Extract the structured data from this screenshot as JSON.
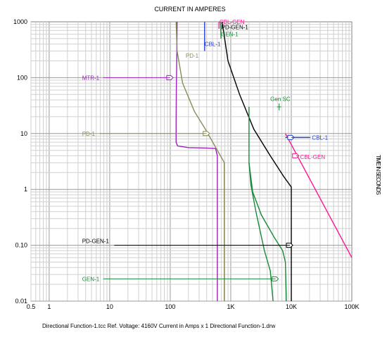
{
  "chart_data": {
    "type": "line",
    "title": "CURRENT IN AMPERES",
    "ylabel": "TIME IN SECONDS",
    "x_scale": "log",
    "y_scale": "log",
    "xlim": [
      0.5,
      100000
    ],
    "ylim": [
      0.01,
      1000
    ],
    "grid": true,
    "x_ticks": [
      {
        "value": 0.5,
        "label": "0.5"
      },
      {
        "value": 1,
        "label": "1"
      },
      {
        "value": 10,
        "label": "10"
      },
      {
        "value": 100,
        "label": "100"
      },
      {
        "value": 1000,
        "label": "1K"
      },
      {
        "value": 10000,
        "label": "10K"
      },
      {
        "value": 100000,
        "label": "100K"
      }
    ],
    "y_ticks": [
      {
        "value": 1000,
        "label": "1000"
      },
      {
        "value": 100,
        "label": "100"
      },
      {
        "value": 10,
        "label": "10"
      },
      {
        "value": 1,
        "label": "1"
      },
      {
        "value": 0.1,
        "label": "0.10"
      },
      {
        "value": 0.01,
        "label": "0.01"
      }
    ],
    "series": [
      {
        "name": "MTR-1",
        "color": "#a020c0",
        "lines": [
          [
            [
              130,
              1000
            ],
            [
              128,
              200
            ],
            [
              126,
              60
            ],
            [
              125,
              15
            ],
            [
              125,
              7
            ],
            [
              132,
              6
            ],
            [
              200,
              5.6
            ],
            [
              400,
              5.5
            ],
            [
              560,
              5.4
            ],
            [
              600,
              4
            ],
            [
              600,
              0.01
            ]
          ]
        ]
      },
      {
        "name": "PD-1",
        "color": "#8b8b5a",
        "lines": [
          [
            [
              125,
              1000
            ],
            [
              130,
              300
            ],
            [
              160,
              80
            ],
            [
              250,
              25
            ],
            [
              380,
              12
            ],
            [
              600,
              5
            ],
            [
              760,
              3.2
            ],
            [
              780,
              3
            ],
            [
              780,
              0.01
            ]
          ]
        ]
      },
      {
        "name": "CBL-1",
        "color": "#1f3fd4",
        "lines": [
          [
            [
              370,
              1000
            ],
            [
              370,
              300
            ]
          ],
          [
            [
              8000,
              8.5
            ],
            [
              20000,
              8.5
            ]
          ]
        ]
      },
      {
        "name": "CBL-GEN",
        "color": "#ff1493",
        "lines": [
          [
            [
              640,
              1000
            ],
            [
              640,
              750
            ]
          ],
          [
            [
              8000,
              10
            ],
            [
              100000,
              0.06
            ]
          ]
        ]
      },
      {
        "name": "PD-GEN-1",
        "color": "#000000",
        "lines": [
          [
            [
              720,
              1000
            ],
            [
              900,
              200
            ],
            [
              1400,
              50
            ],
            [
              2400,
              12
            ],
            [
              4500,
              4
            ],
            [
              7500,
              1.7
            ],
            [
              10000,
              1.1
            ],
            [
              10000,
              0.01
            ]
          ]
        ]
      },
      {
        "name": "GEN-1",
        "color": "#1a8a3a",
        "lines": [
          [
            [
              680,
              1000
            ],
            [
              690,
              500
            ]
          ],
          [
            [
              2000,
              30
            ],
            [
              2000,
              3
            ],
            [
              2150,
              1.2
            ],
            [
              2600,
              0.4
            ],
            [
              3600,
              0.08
            ],
            [
              4500,
              0.035
            ],
            [
              5000,
              0.01
            ]
          ],
          [
            [
              2000,
              3
            ],
            [
              2300,
              0.9
            ],
            [
              3200,
              0.35
            ],
            [
              5200,
              0.14
            ],
            [
              7200,
              0.08
            ],
            [
              8000,
              0.05
            ],
            [
              8300,
              0.01
            ]
          ]
        ]
      }
    ],
    "labels": [
      {
        "text": "MTR-1",
        "series": "MTR-1",
        "x": 3.5,
        "y": 100
      },
      {
        "text": "PD-1",
        "series": "PD-1",
        "x": 3.5,
        "y": 10
      },
      {
        "text": "PD-1",
        "series": "PD-1",
        "x": 180,
        "y": 250
      },
      {
        "text": "CBL-1",
        "series": "CBL-1",
        "x": 370,
        "y": 400
      },
      {
        "text": "CBL-1",
        "series": "CBL-1",
        "x": 22000,
        "y": 8.5
      },
      {
        "text": "CBL-GEN",
        "series": "CBL-GEN",
        "x": 650,
        "y": 1000
      },
      {
        "text": "CBL-GEN",
        "series": "CBL-GEN",
        "x": 14000,
        "y": 3.8
      },
      {
        "text": "PD-GEN-1",
        "series": "PD-GEN-1",
        "x": 700,
        "y": 800
      },
      {
        "text": "PD-GEN-1",
        "series": "PD-GEN-1",
        "x": 3.5,
        "y": 0.12
      },
      {
        "text": "GEN-1",
        "series": "GEN-1",
        "x": 690,
        "y": 600
      },
      {
        "text": "GEN-1",
        "series": "GEN-1",
        "x": 3.5,
        "y": 0.025
      },
      {
        "text": "Gen SC",
        "series": "GEN-1",
        "x": 4500,
        "y": 42
      }
    ],
    "markers": [
      {
        "series": "MTR-1",
        "x": 100,
        "y": 100
      },
      {
        "series": "PD-1",
        "x": 400,
        "y": 10
      },
      {
        "series": "CBL-1",
        "x": 10000,
        "y": 8.5
      },
      {
        "series": "CBL-GEN",
        "x": 12000,
        "y": 4
      },
      {
        "series": "PD-GEN-1",
        "x": 9500,
        "y": 0.1
      },
      {
        "series": "GEN-1",
        "x": 5500,
        "y": 0.025
      }
    ],
    "footer": "Directional Function-1.tcc   Ref. Voltage: 4160V   Current in Amps x 1   Directional Function-1.drw"
  }
}
